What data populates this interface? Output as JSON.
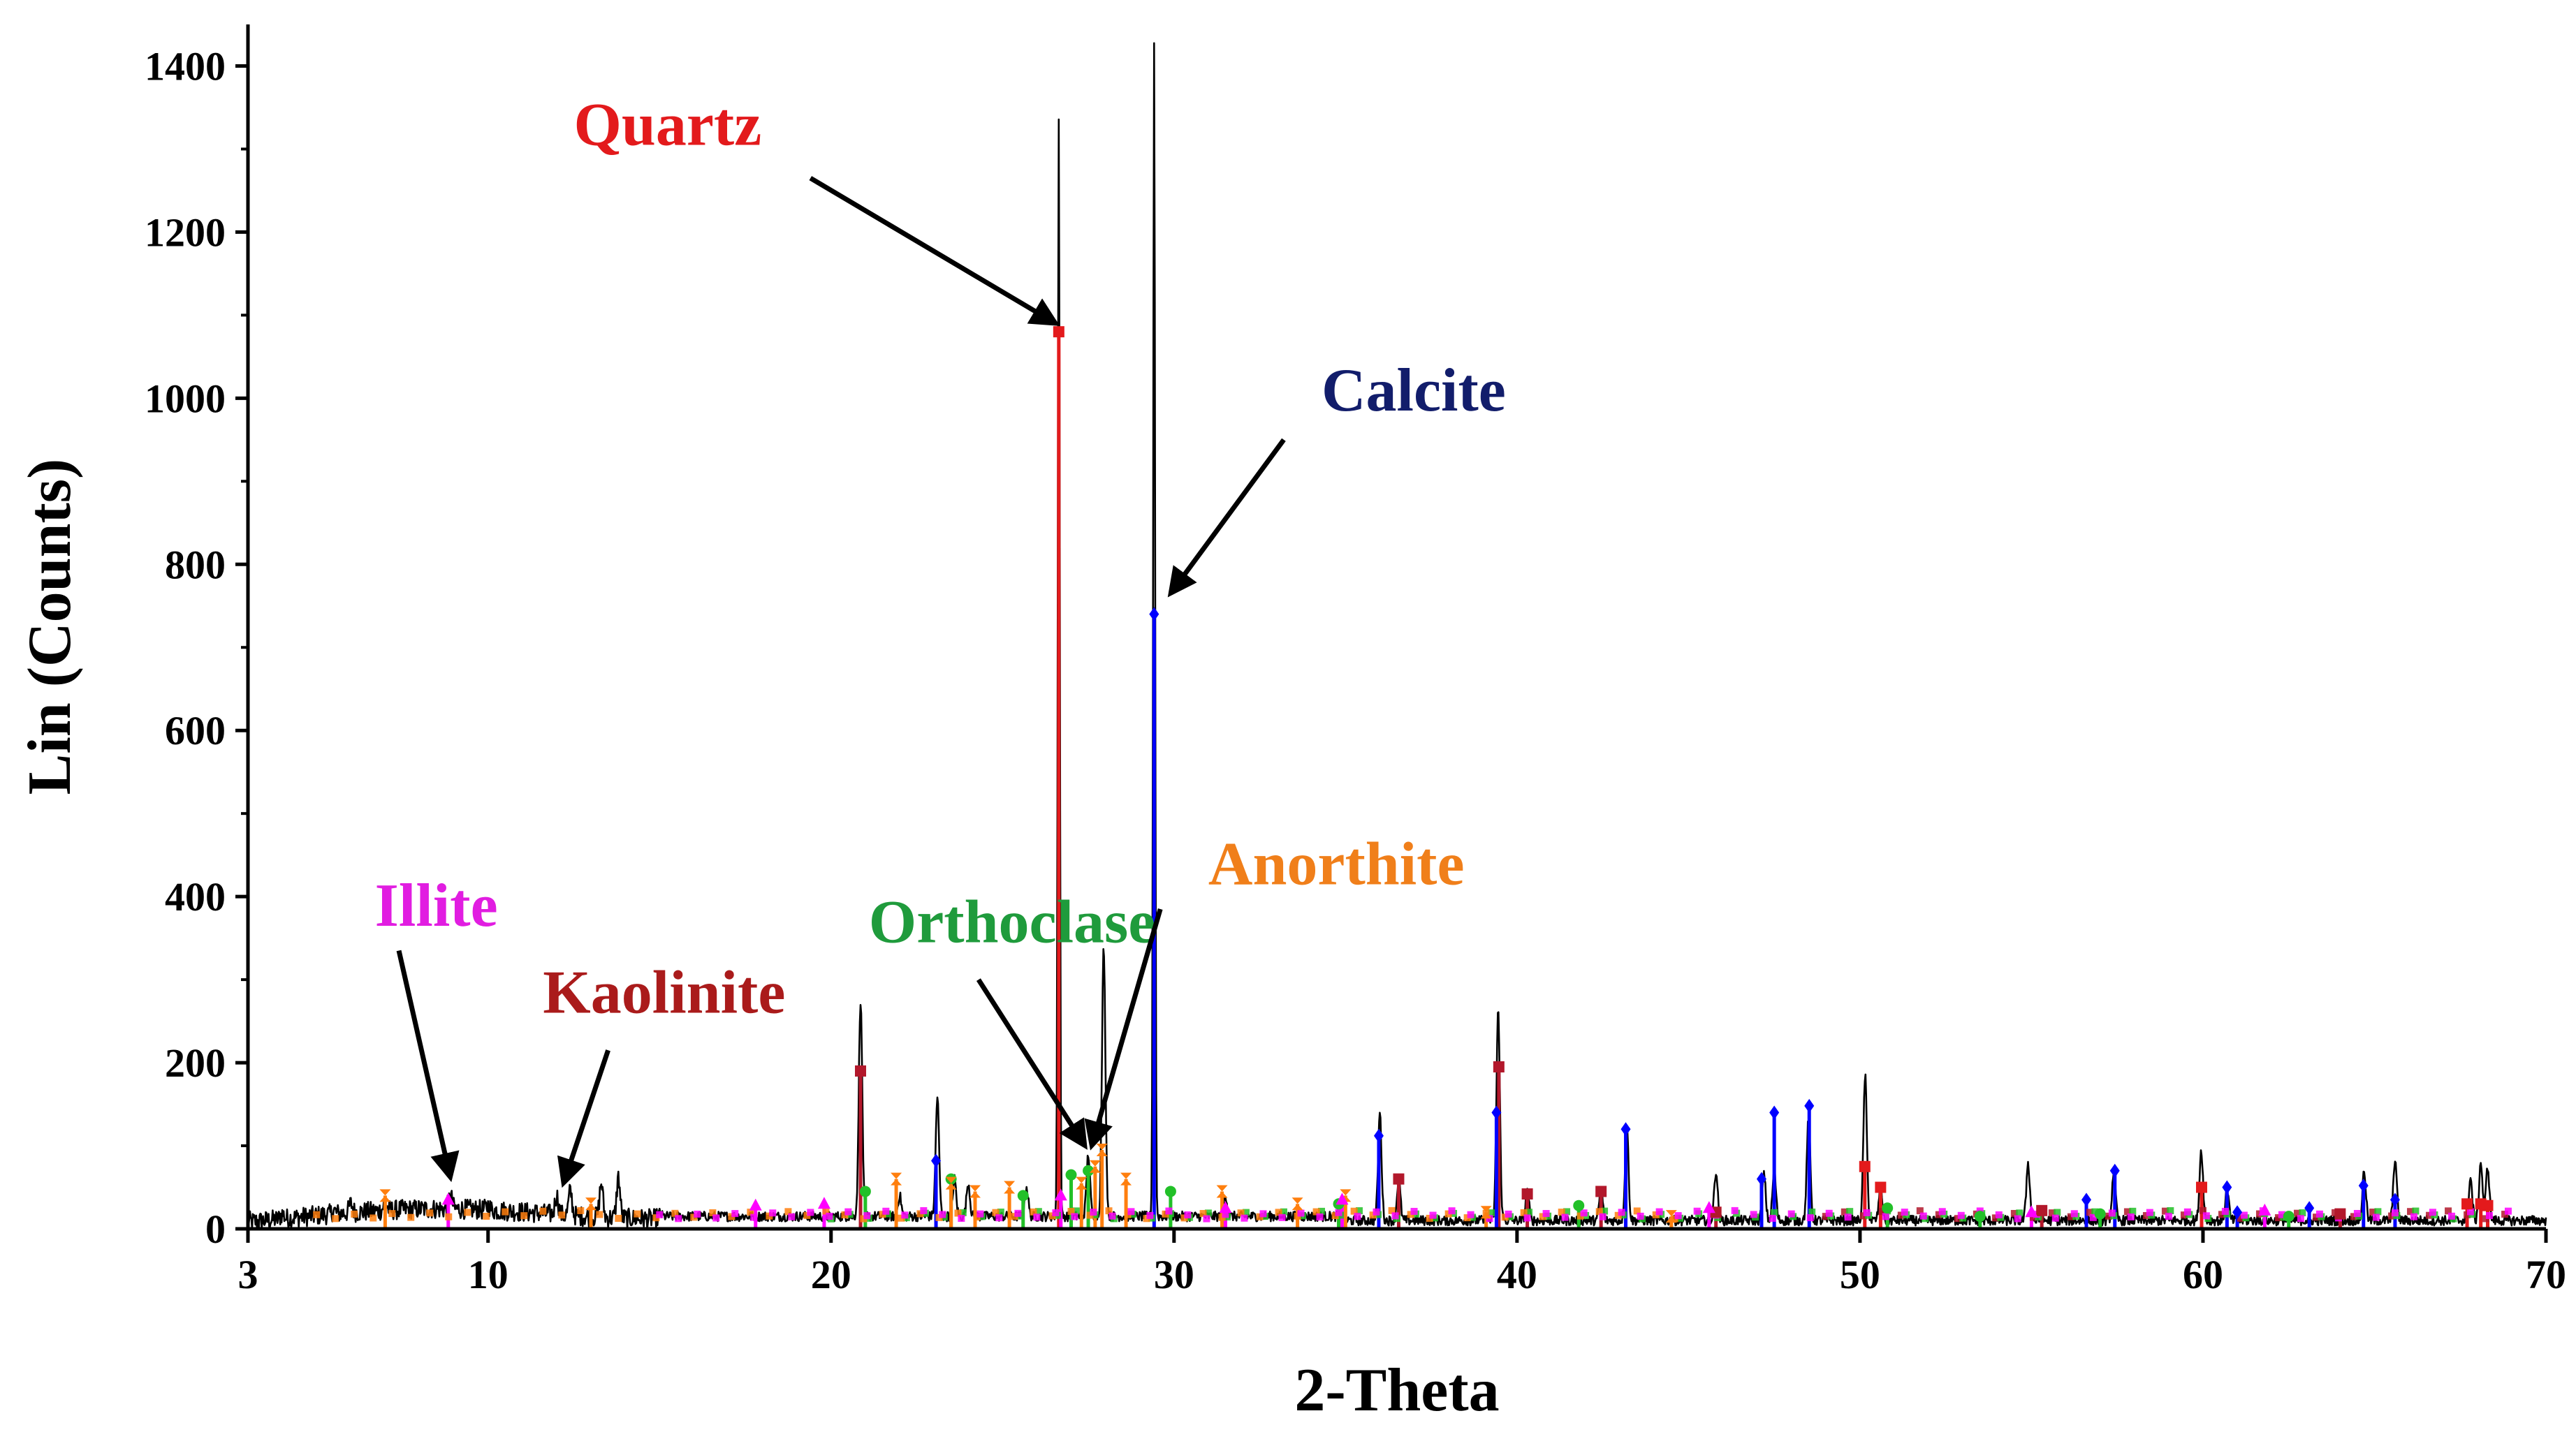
{
  "chart_data": {
    "type": "line",
    "title": "",
    "xlabel": "2-Theta",
    "ylabel": "Lin (Counts)",
    "xlim": [
      3,
      70
    ],
    "ylim": [
      0,
      1450
    ],
    "x_ticks": [
      3,
      10,
      20,
      30,
      40,
      50,
      60,
      70
    ],
    "y_ticks": [
      0,
      200,
      400,
      600,
      800,
      1000,
      1200,
      1400
    ],
    "pattern_peaks": [
      {
        "x": 3.0,
        "y": 10
      },
      {
        "x": 4.0,
        "y": 18
      },
      {
        "x": 5.5,
        "y": 22
      },
      {
        "x": 6.0,
        "y": 30
      },
      {
        "x": 7.0,
        "y": 32
      },
      {
        "x": 8.9,
        "y": 40
      },
      {
        "x": 10.0,
        "y": 28
      },
      {
        "x": 12.0,
        "y": 40
      },
      {
        "x": 12.4,
        "y": 45
      },
      {
        "x": 13.3,
        "y": 55
      },
      {
        "x": 13.8,
        "y": 62
      },
      {
        "x": 15.0,
        "y": 18
      },
      {
        "x": 20.86,
        "y": 275
      },
      {
        "x": 22.0,
        "y": 40
      },
      {
        "x": 23.1,
        "y": 158
      },
      {
        "x": 23.6,
        "y": 60
      },
      {
        "x": 24.0,
        "y": 55
      },
      {
        "x": 25.7,
        "y": 50
      },
      {
        "x": 26.64,
        "y": 1340
      },
      {
        "x": 27.5,
        "y": 90
      },
      {
        "x": 27.95,
        "y": 340
      },
      {
        "x": 29.42,
        "y": 1430
      },
      {
        "x": 31.5,
        "y": 40
      },
      {
        "x": 36.0,
        "y": 140
      },
      {
        "x": 36.55,
        "y": 60
      },
      {
        "x": 39.45,
        "y": 265
      },
      {
        "x": 40.3,
        "y": 45
      },
      {
        "x": 42.45,
        "y": 50
      },
      {
        "x": 43.2,
        "y": 125
      },
      {
        "x": 45.8,
        "y": 70
      },
      {
        "x": 47.2,
        "y": 65
      },
      {
        "x": 47.5,
        "y": 70
      },
      {
        "x": 48.5,
        "y": 135
      },
      {
        "x": 50.15,
        "y": 185
      },
      {
        "x": 50.6,
        "y": 50
      },
      {
        "x": 54.9,
        "y": 80
      },
      {
        "x": 57.4,
        "y": 70
      },
      {
        "x": 59.95,
        "y": 95
      },
      {
        "x": 60.7,
        "y": 50
      },
      {
        "x": 64.7,
        "y": 70
      },
      {
        "x": 65.6,
        "y": 85
      },
      {
        "x": 67.8,
        "y": 60
      },
      {
        "x": 68.1,
        "y": 80
      },
      {
        "x": 68.3,
        "y": 75
      }
    ],
    "series": [
      {
        "name": "Quartz",
        "color": "#E31A1C",
        "marker": "square",
        "sticks": [
          {
            "x": 26.64,
            "y": 1080
          },
          {
            "x": 50.14,
            "y": 75
          },
          {
            "x": 50.6,
            "y": 50
          },
          {
            "x": 59.96,
            "y": 50
          },
          {
            "x": 67.7,
            "y": 30
          },
          {
            "x": 68.1,
            "y": 30
          },
          {
            "x": 68.3,
            "y": 28
          }
        ]
      },
      {
        "name": "Kaolinite",
        "color": "#B2182B",
        "marker": "square",
        "sticks": [
          {
            "x": 20.86,
            "y": 190
          },
          {
            "x": 36.55,
            "y": 60
          },
          {
            "x": 39.47,
            "y": 195
          },
          {
            "x": 40.3,
            "y": 42
          },
          {
            "x": 42.45,
            "y": 45
          },
          {
            "x": 45.8,
            "y": 20
          },
          {
            "x": 55.3,
            "y": 22
          },
          {
            "x": 64.0,
            "y": 18
          }
        ]
      },
      {
        "name": "Calcite",
        "color": "#0000FF",
        "marker": "diamond",
        "sticks": [
          {
            "x": 23.06,
            "y": 82
          },
          {
            "x": 29.42,
            "y": 740
          },
          {
            "x": 35.97,
            "y": 112
          },
          {
            "x": 39.4,
            "y": 140
          },
          {
            "x": 43.17,
            "y": 120
          },
          {
            "x": 47.13,
            "y": 60
          },
          {
            "x": 47.5,
            "y": 140
          },
          {
            "x": 48.52,
            "y": 148
          },
          {
            "x": 56.6,
            "y": 35
          },
          {
            "x": 57.43,
            "y": 70
          },
          {
            "x": 60.7,
            "y": 50
          },
          {
            "x": 61.0,
            "y": 20
          },
          {
            "x": 63.1,
            "y": 25
          },
          {
            "x": 64.68,
            "y": 52
          },
          {
            "x": 65.6,
            "y": 35
          }
        ]
      },
      {
        "name": "Orthoclase",
        "color": "#22C028",
        "marker": "circle",
        "sticks": [
          {
            "x": 21.0,
            "y": 45
          },
          {
            "x": 23.5,
            "y": 60
          },
          {
            "x": 25.6,
            "y": 40
          },
          {
            "x": 27.0,
            "y": 65
          },
          {
            "x": 27.5,
            "y": 70
          },
          {
            "x": 29.9,
            "y": 45
          },
          {
            "x": 34.8,
            "y": 30
          },
          {
            "x": 41.8,
            "y": 28
          },
          {
            "x": 50.8,
            "y": 25
          },
          {
            "x": 53.5,
            "y": 15
          },
          {
            "x": 57.0,
            "y": 18
          },
          {
            "x": 62.5,
            "y": 15
          }
        ]
      },
      {
        "name": "Anorthite",
        "color": "#FF7F0E",
        "marker": "hourglass",
        "sticks": [
          {
            "x": 7.0,
            "y": 40
          },
          {
            "x": 13.0,
            "y": 30
          },
          {
            "x": 21.9,
            "y": 60
          },
          {
            "x": 23.5,
            "y": 55
          },
          {
            "x": 24.2,
            "y": 45
          },
          {
            "x": 25.2,
            "y": 50
          },
          {
            "x": 27.3,
            "y": 55
          },
          {
            "x": 27.7,
            "y": 75
          },
          {
            "x": 27.9,
            "y": 95
          },
          {
            "x": 28.6,
            "y": 60
          },
          {
            "x": 31.4,
            "y": 45
          },
          {
            "x": 33.6,
            "y": 30
          },
          {
            "x": 35.0,
            "y": 40
          },
          {
            "x": 39.1,
            "y": 20
          },
          {
            "x": 44.5,
            "y": 15
          }
        ]
      },
      {
        "name": "Illite",
        "color": "#FF00FF",
        "marker": "triangle",
        "sticks": [
          {
            "x": 8.84,
            "y": 35
          },
          {
            "x": 17.8,
            "y": 28
          },
          {
            "x": 19.8,
            "y": 30
          },
          {
            "x": 26.7,
            "y": 40
          },
          {
            "x": 31.5,
            "y": 25
          },
          {
            "x": 34.9,
            "y": 35
          },
          {
            "x": 45.6,
            "y": 25
          },
          {
            "x": 55.0,
            "y": 20
          },
          {
            "x": 61.8,
            "y": 22
          }
        ]
      }
    ],
    "annotations": [
      {
        "text": "Quartz",
        "color": "#E31A1C",
        "label_x": 12.5,
        "label_y": 1305,
        "arrow_from_x": 19.4,
        "arrow_from_y": 1265,
        "arrow_to_x": 26.55,
        "arrow_to_y": 1090
      },
      {
        "text": "Calcite",
        "color": "#121D6B",
        "label_x": 34.3,
        "label_y": 985,
        "arrow_from_x": 33.2,
        "arrow_from_y": 950,
        "arrow_to_x": 29.9,
        "arrow_to_y": 765
      },
      {
        "text": "Illite",
        "color": "#E11DE1",
        "label_x": 6.7,
        "label_y": 365,
        "arrow_from_x": 7.4,
        "arrow_from_y": 335,
        "arrow_to_x": 8.9,
        "arrow_to_y": 62
      },
      {
        "text": "Kaolinite",
        "color": "#AA1B1B",
        "label_x": 11.6,
        "label_y": 260,
        "arrow_from_x": 13.5,
        "arrow_from_y": 215,
        "arrow_to_x": 12.2,
        "arrow_to_y": 55
      },
      {
        "text": "Orthoclase",
        "color": "#1F9B3C",
        "label_x": 21.1,
        "label_y": 345,
        "arrow_from_x": 24.3,
        "arrow_from_y": 300,
        "arrow_to_x": 27.4,
        "arrow_to_y": 100
      },
      {
        "text": "Anorthite",
        "color": "#F07F1A",
        "label_x": 31.0,
        "label_y": 415,
        "arrow_from_x": 29.6,
        "arrow_from_y": 385,
        "arrow_to_x": 27.6,
        "arrow_to_y": 100
      }
    ]
  }
}
